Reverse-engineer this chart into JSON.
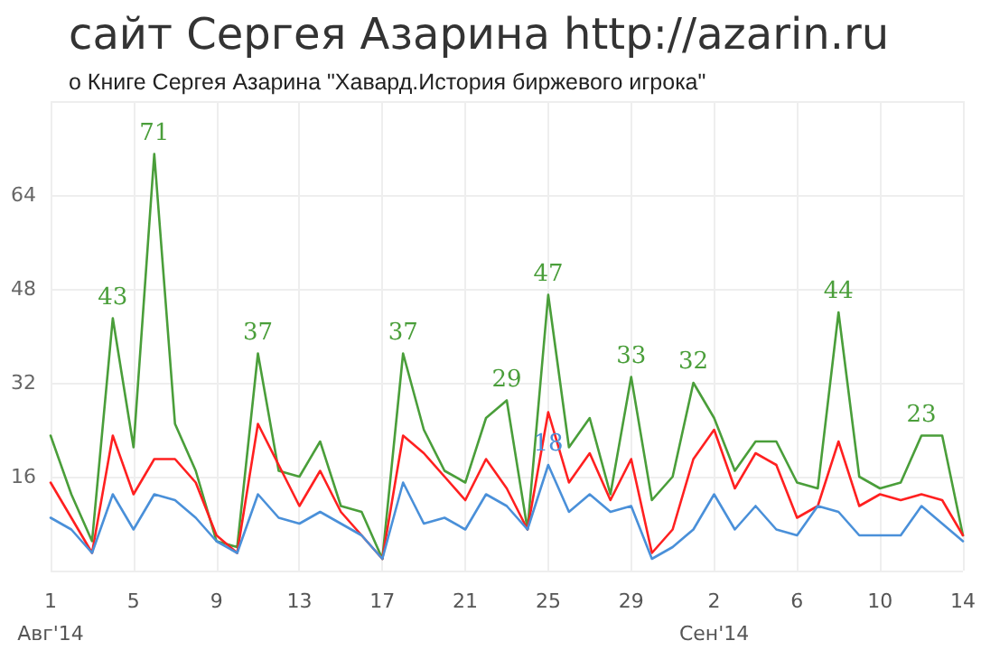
{
  "chart_data": {
    "type": "line",
    "title": "сайт Сергея Азарина http://azarin.ru",
    "subtitle": "о Книге Сергея Азарина \"Хавард.История биржевого игрока\"",
    "categories": [
      "1\nАвг'14",
      null,
      null,
      null,
      "5",
      null,
      null,
      null,
      "9",
      null,
      null,
      null,
      "13",
      null,
      null,
      null,
      "17",
      null,
      null,
      null,
      "21",
      null,
      null,
      null,
      "25",
      null,
      null,
      null,
      "29",
      null,
      null,
      null,
      "2\nСен'14",
      null,
      null,
      null,
      "6",
      null,
      null,
      null,
      "10",
      null,
      null,
      null,
      "14"
    ],
    "series": [
      {
        "color": "#4a9e3a",
        "values": [
          23,
          13,
          5,
          43,
          21,
          71,
          25,
          17,
          5,
          4,
          37,
          17,
          16,
          22,
          11,
          10,
          2,
          37,
          24,
          17,
          15,
          26,
          29,
          7,
          47,
          21,
          26,
          13,
          33,
          12,
          16,
          32,
          26,
          17,
          22,
          22,
          15,
          14,
          44,
          16,
          14,
          15,
          23,
          23,
          6
        ],
        "value_labels": [
          null,
          null,
          null,
          "43",
          null,
          "71",
          null,
          null,
          null,
          null,
          "37",
          null,
          null,
          null,
          null,
          null,
          null,
          "37",
          null,
          null,
          null,
          null,
          "29",
          null,
          "47",
          null,
          null,
          null,
          "33",
          null,
          null,
          "32",
          null,
          null,
          null,
          null,
          null,
          null,
          "44",
          null,
          null,
          null,
          "23",
          null,
          null
        ]
      },
      {
        "color": "#ff2020",
        "values": [
          15,
          9,
          3,
          23,
          13,
          19,
          19,
          15,
          6,
          3,
          25,
          18,
          11,
          17,
          10,
          6,
          2,
          23,
          20,
          16,
          12,
          19,
          14,
          7,
          27,
          15,
          20,
          12,
          19,
          3,
          7,
          19,
          24,
          14,
          20,
          18,
          9,
          11,
          22,
          11,
          13,
          12,
          13,
          12,
          6
        ]
      },
      {
        "color": "#4a90d9",
        "values": [
          9,
          7,
          3,
          13,
          7,
          13,
          12,
          9,
          5,
          3,
          13,
          9,
          8,
          10,
          8,
          6,
          2,
          15,
          8,
          9,
          7,
          13,
          11,
          7,
          18,
          10,
          13,
          10,
          11,
          2,
          4,
          7,
          13,
          7,
          11,
          7,
          6,
          11,
          10,
          6,
          6,
          6,
          11,
          8,
          5
        ],
        "value_labels": [
          null,
          null,
          null,
          null,
          null,
          null,
          null,
          null,
          null,
          null,
          null,
          null,
          null,
          null,
          null,
          null,
          null,
          null,
          null,
          null,
          null,
          null,
          null,
          null,
          "18",
          null,
          null,
          null,
          null,
          null,
          null,
          null,
          null,
          null,
          null,
          null,
          null,
          null,
          null,
          null,
          null,
          null,
          null,
          null,
          null
        ]
      }
    ],
    "ylim": [
      0,
      80
    ],
    "yticks": [
      16,
      32,
      48,
      64
    ],
    "grid": true,
    "marker": "none",
    "line_style": "solid"
  }
}
